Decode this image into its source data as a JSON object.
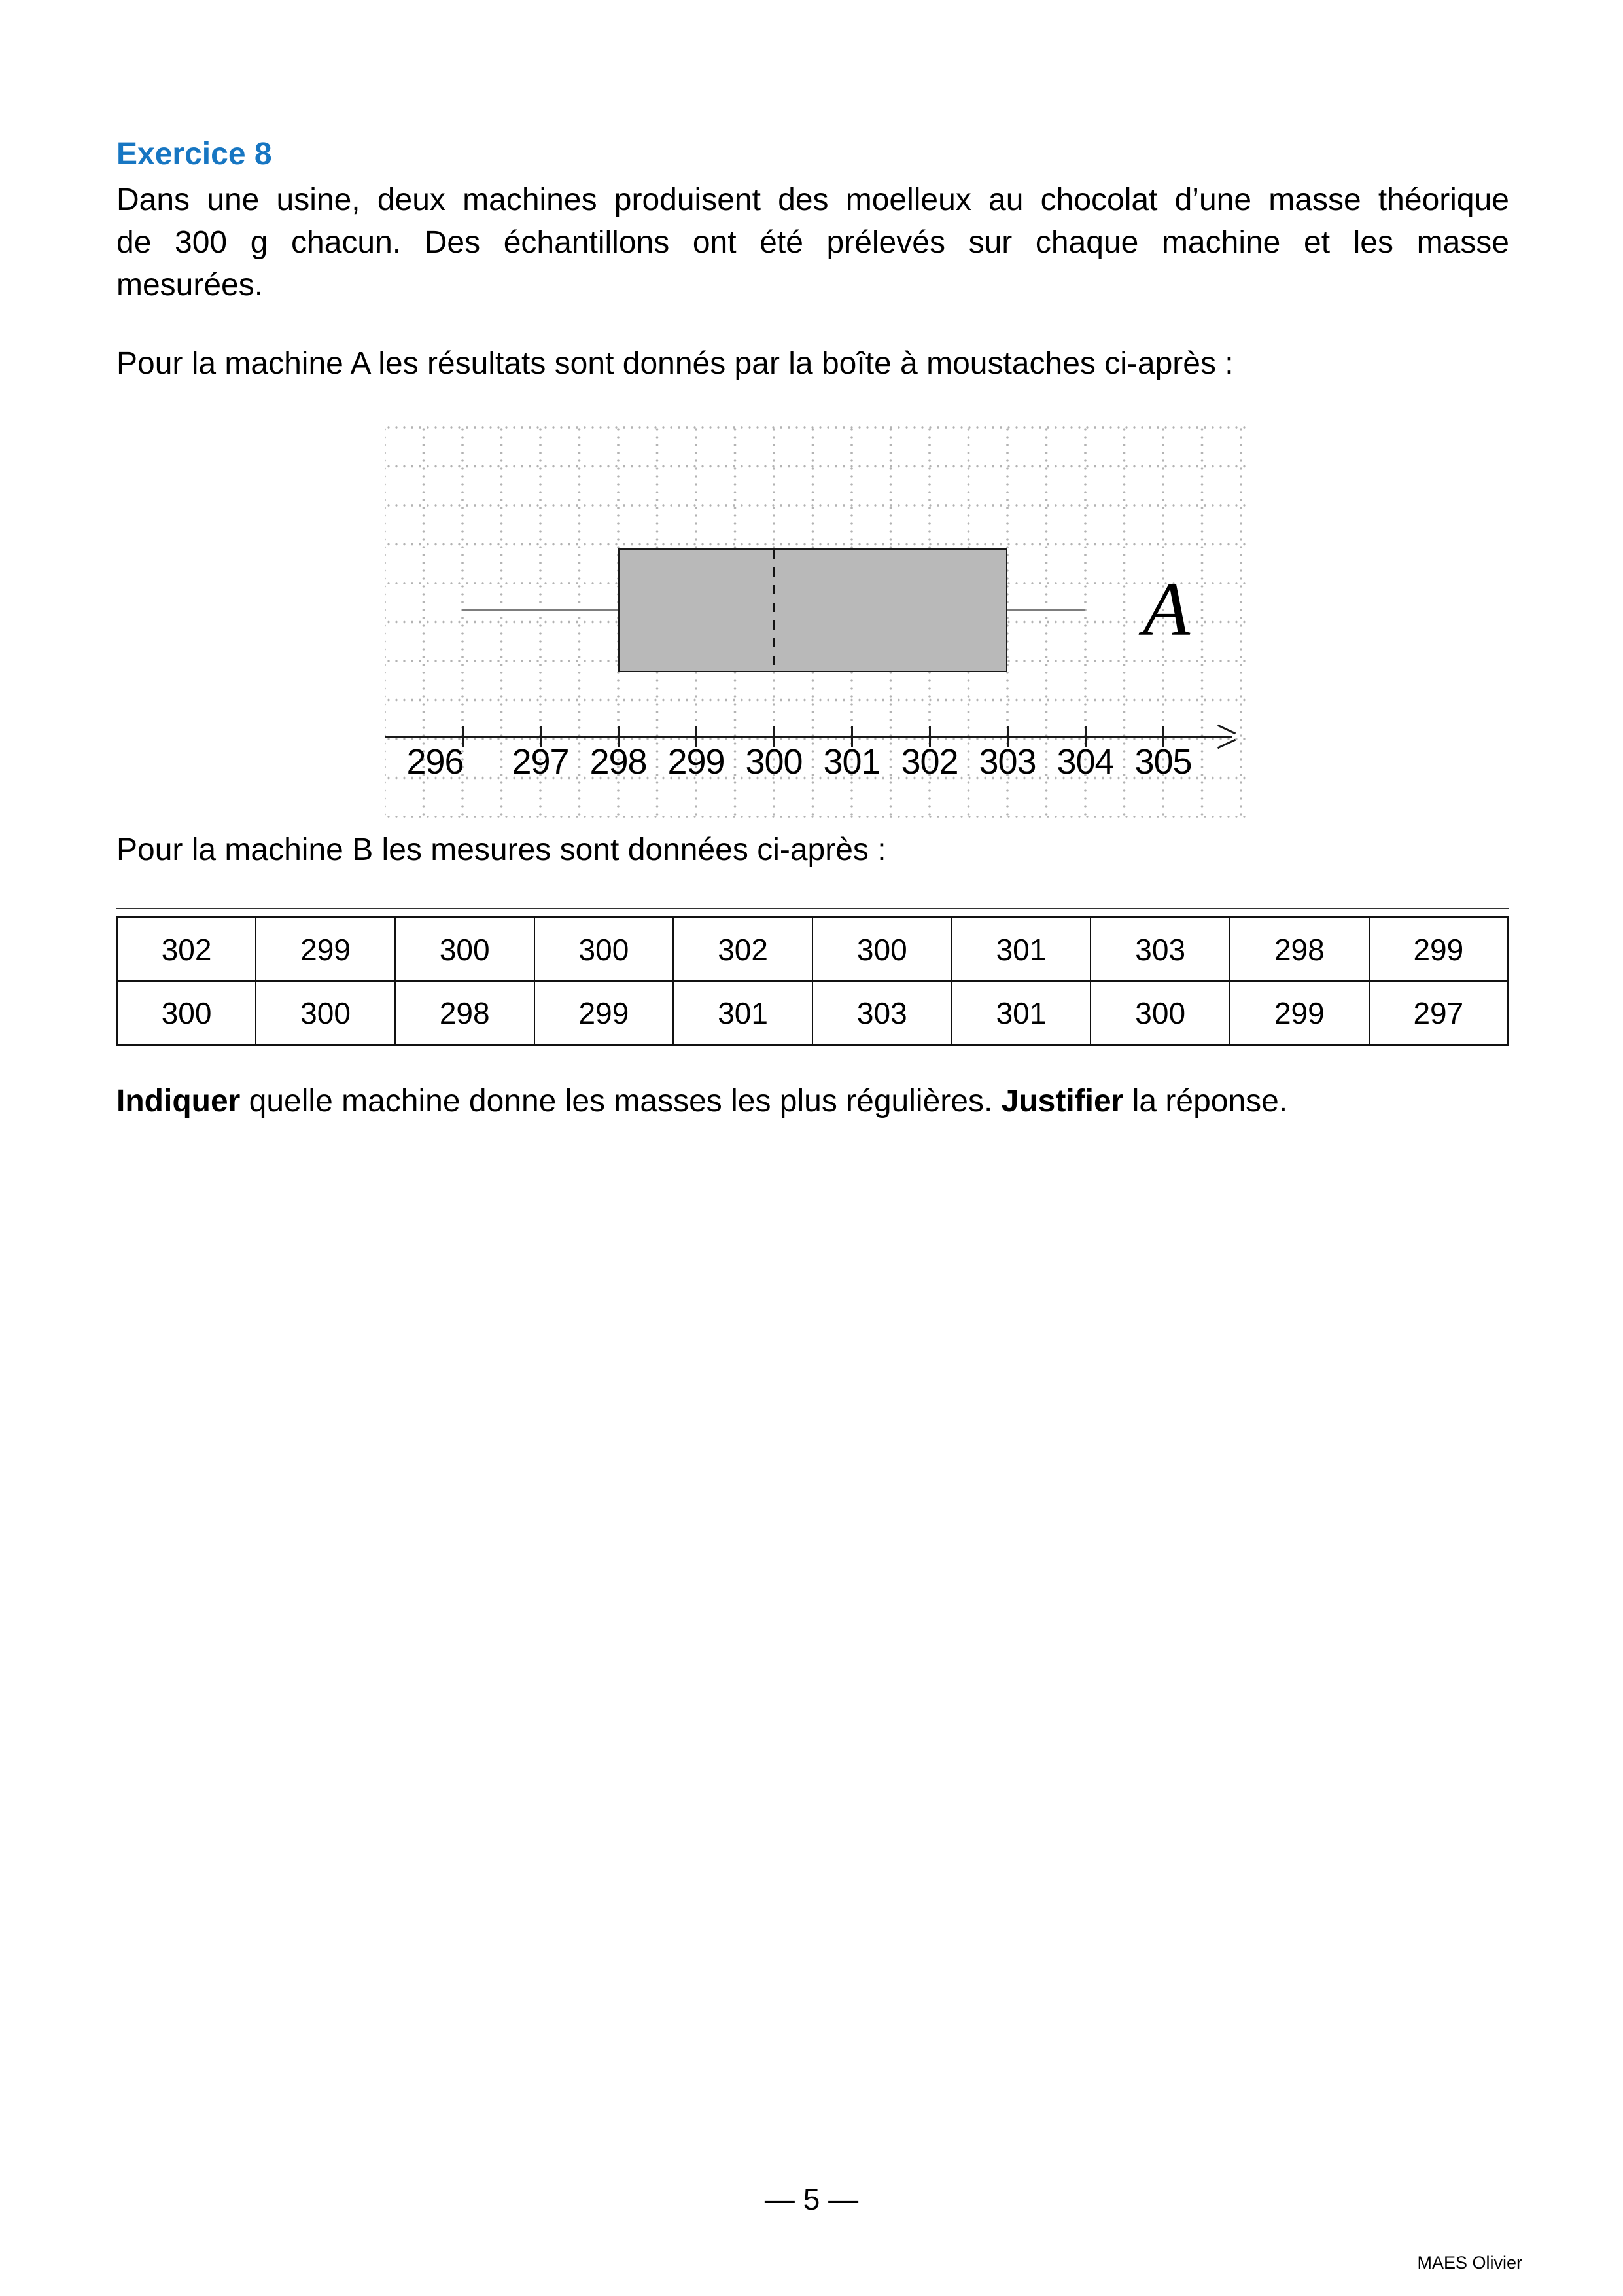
{
  "heading": {
    "label": "Exercice 8",
    "color": "#1776c2"
  },
  "paragraph": {
    "line1": "Dans une usine, deux machines produisent des moelleux au chocolat d’une masse théorique",
    "line2": "de 300 g chacun. Des échantillons ont été prélevés sur chaque machine et les masse",
    "line3": "mesurées."
  },
  "captions": {
    "machine_a": "Pour la machine A les résultats sont donnés par la boîte à moustaches ci-après :",
    "machine_b": "Pour la machine B les mesures sont données ci-après :"
  },
  "question": {
    "bold1": "Indiquer",
    "middle": " quelle machine donne les masses les plus régulières. ",
    "bold2": "Justifier",
    "end": " la réponse."
  },
  "chart_data": {
    "type": "boxplot",
    "orientation": "horizontal",
    "series_label": "A",
    "stats": {
      "min": 296,
      "q1": 298,
      "median": 300,
      "q3": 303,
      "max": 304
    },
    "axis_ticks": [
      296,
      297,
      298,
      299,
      300,
      301,
      302,
      303,
      304,
      305
    ],
    "xlim": [
      295,
      306
    ],
    "grid": "dotted",
    "box_fill": "#b9b9b9",
    "whisker_color": "#7d7d7d"
  },
  "machine_b_table": {
    "rows": [
      [
        "302",
        "299",
        "300",
        "300",
        "302",
        "300",
        "301",
        "303",
        "298",
        "299"
      ],
      [
        "300",
        "300",
        "298",
        "299",
        "301",
        "303",
        "301",
        "300",
        "299",
        "297"
      ]
    ]
  },
  "footer": {
    "page_number": "— 5 —",
    "author": "MAES Olivier"
  }
}
